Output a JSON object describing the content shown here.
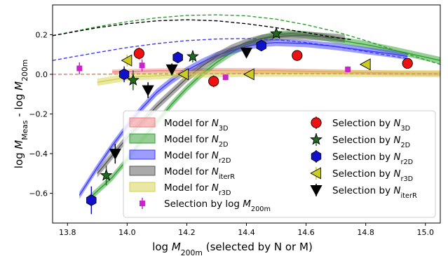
{
  "chart_data": {
    "type": "scatter",
    "xlabel": "log M_200m (selected by N or M)",
    "ylabel": "log M_Meas - log M_200m",
    "xlim": [
      13.75,
      15.05
    ],
    "ylim": [
      -0.75,
      0.35
    ],
    "xticks": [
      "13.8",
      "14.0",
      "14.2",
      "14.4",
      "14.6",
      "14.8",
      "15.0"
    ],
    "yticks": [
      "-0.6",
      "-0.4",
      "-0.2",
      "0.0",
      "0.2"
    ],
    "grid": false,
    "legend_placement": "lower-right",
    "models": [
      {
        "name": "Model for N_3D",
        "color": "#f08080",
        "x": [
          13.95,
          14.1,
          14.3,
          14.5,
          14.7,
          14.9,
          15.05
        ],
        "y": [
          0.012,
          0.018,
          0.02,
          0.018,
          0.012,
          0.006,
          0.003
        ],
        "halfwidth": 0.012
      },
      {
        "name": "Model for N_2D",
        "color": "#2ca02c",
        "x": [
          13.87,
          13.95,
          14.0,
          14.05,
          14.1,
          14.15,
          14.2,
          14.25,
          14.3,
          14.35,
          14.4,
          14.45,
          14.5,
          14.55,
          14.6,
          14.65,
          14.7,
          14.8,
          14.9,
          15.05
        ],
        "y": [
          -0.63,
          -0.52,
          -0.43,
          -0.33,
          -0.24,
          -0.15,
          -0.07,
          0.0,
          0.06,
          0.11,
          0.15,
          0.18,
          0.2,
          0.205,
          0.2,
          0.19,
          0.175,
          0.15,
          0.12,
          0.07
        ],
        "halfwidth": 0.018
      },
      {
        "name": "Model for N_r2D",
        "color": "#3b3bff",
        "x": [
          13.84,
          13.9,
          13.95,
          14.0,
          14.05,
          14.1,
          14.15,
          14.2,
          14.25,
          14.3,
          14.35,
          14.4,
          14.45,
          14.5,
          14.6,
          14.7,
          14.8,
          14.9,
          14.94
        ],
        "y": [
          -0.61,
          -0.47,
          -0.36,
          -0.26,
          -0.17,
          -0.09,
          -0.03,
          0.02,
          0.06,
          0.095,
          0.12,
          0.14,
          0.155,
          0.16,
          0.155,
          0.14,
          0.12,
          0.1,
          0.09
        ],
        "halfwidth": 0.018
      },
      {
        "name": "Model for N_iterR",
        "color": "#555555",
        "x": [
          13.9,
          13.95,
          14.0,
          14.05,
          14.1,
          14.15,
          14.2,
          14.25,
          14.3,
          14.35,
          14.4,
          14.45,
          14.5,
          14.55,
          14.6,
          14.65,
          14.7,
          14.73
        ],
        "y": [
          -0.5,
          -0.41,
          -0.32,
          -0.24,
          -0.16,
          -0.09,
          -0.02,
          0.04,
          0.09,
          0.13,
          0.16,
          0.18,
          0.19,
          0.195,
          0.195,
          0.19,
          0.185,
          0.18
        ],
        "halfwidth": 0.02
      },
      {
        "name": "Model for N_r3D",
        "color": "#d4d04a",
        "x": [
          13.9,
          14.0,
          14.2,
          14.4,
          14.6,
          14.8,
          15.05
        ],
        "y": [
          -0.04,
          -0.015,
          0.0,
          0.005,
          0.005,
          0.004,
          0.003
        ],
        "halfwidth": 0.018
      }
    ],
    "dashed_lines": [
      {
        "color": "#2ca02c",
        "x": [
          13.75,
          13.9,
          14.0,
          14.1,
          14.2,
          14.3,
          14.4,
          14.5,
          14.6,
          14.7,
          14.8,
          14.9,
          15.05
        ],
        "y": [
          0.195,
          0.24,
          0.265,
          0.285,
          0.297,
          0.3,
          0.295,
          0.278,
          0.25,
          0.215,
          0.17,
          0.12,
          0.05
        ]
      },
      {
        "color": "#000000",
        "x": [
          13.75,
          13.9,
          14.0,
          14.1,
          14.2,
          14.3,
          14.4,
          14.5,
          14.6,
          14.7,
          14.75
        ],
        "y": [
          0.195,
          0.235,
          0.255,
          0.27,
          0.275,
          0.27,
          0.255,
          0.235,
          0.21,
          0.185,
          0.175
        ]
      },
      {
        "color": "#3b3bff",
        "x": [
          13.75,
          13.9,
          14.0,
          14.1,
          14.2,
          14.3,
          14.4,
          14.5,
          14.6,
          14.7,
          14.8,
          14.9,
          14.94
        ],
        "y": [
          0.07,
          0.11,
          0.135,
          0.155,
          0.17,
          0.178,
          0.18,
          0.175,
          0.16,
          0.14,
          0.115,
          0.09,
          0.08
        ]
      },
      {
        "color": "#d4d04a",
        "x": [
          13.75,
          14.0,
          14.4,
          14.8,
          15.05
        ],
        "y": [
          0.0,
          0.0,
          0.002,
          0.002,
          0.002
        ]
      },
      {
        "color": "#f08080",
        "x": [
          13.75,
          14.0,
          14.4,
          14.8,
          15.05
        ],
        "y": [
          0.0,
          0.002,
          0.004,
          0.003,
          0.002
        ]
      }
    ],
    "selections": [
      {
        "name": "Selection by log M_200m",
        "marker": "square",
        "color": "#cc22cc",
        "x": [
          13.84,
          14.05,
          14.33,
          14.74
        ],
        "y": [
          0.03,
          0.045,
          -0.015,
          0.025
        ],
        "err": [
          0.03,
          0.03,
          0.015,
          0.015
        ]
      },
      {
        "name": "Selection by N_3D",
        "marker": "circle",
        "color": "#ee1111",
        "x": [
          14.04,
          14.29,
          14.57,
          14.94
        ],
        "y": [
          0.105,
          -0.035,
          0.095,
          0.055
        ],
        "err": [
          0.03,
          0.03,
          0.015,
          0.015
        ]
      },
      {
        "name": "Selection by N_2D",
        "marker": "star",
        "color": "#1f6b1f",
        "x": [
          13.93,
          14.02,
          14.22,
          14.5
        ],
        "y": [
          -0.51,
          -0.03,
          0.09,
          0.205
        ],
        "err": [
          0.05,
          0.05,
          0.03,
          0.02
        ]
      },
      {
        "name": "Selection by N_r2D",
        "marker": "hexagon",
        "color": "#1111cc",
        "x": [
          13.88,
          13.99,
          14.17,
          14.45
        ],
        "y": [
          -0.635,
          0.0,
          0.085,
          0.145
        ],
        "err": [
          0.07,
          0.04,
          0.02,
          0.02
        ]
      },
      {
        "name": "Selection by N_r3D",
        "marker": "triangle-left",
        "color": "#cccc22",
        "x": [
          14.0,
          14.19,
          14.41,
          14.8
        ],
        "y": [
          0.07,
          0.0,
          0.0,
          0.05
        ],
        "err": [
          0.03,
          0.03,
          0.015,
          0.015
        ]
      },
      {
        "name": "Selection by N_iterR",
        "marker": "triangle-down",
        "color": "#000000",
        "x": [
          13.96,
          14.07,
          14.15,
          14.4
        ],
        "y": [
          -0.4,
          -0.08,
          0.025,
          0.11
        ],
        "err": [
          0.05,
          0.04,
          0.03,
          0.02
        ]
      }
    ]
  }
}
